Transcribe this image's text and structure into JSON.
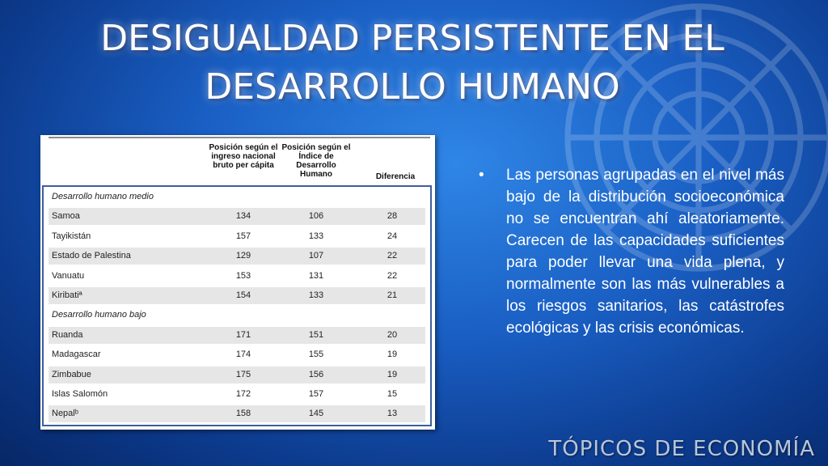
{
  "slide": {
    "title_line1": "DESIGUALDAD PERSISTENTE EN EL",
    "title_line2": "DESARROLLO HUMANO",
    "footer": "TÓPICOS DE ECONOMÍA"
  },
  "table": {
    "headers": [
      "Posición según el ingreso nacional bruto per cápita",
      "Posición según el Índice de Desarrollo Humano",
      "Diferencia"
    ],
    "rows": [
      {
        "label": "Desarrollo humano medio",
        "section": true,
        "v1": "",
        "v2": "",
        "v3": ""
      },
      {
        "label": "Samoa",
        "section": false,
        "v1": "134",
        "v2": "106",
        "v3": "28"
      },
      {
        "label": "Tayikistán",
        "section": false,
        "v1": "157",
        "v2": "133",
        "v3": "24"
      },
      {
        "label": "Estado de Palestina",
        "section": false,
        "v1": "129",
        "v2": "107",
        "v3": "22"
      },
      {
        "label": "Vanuatu",
        "section": false,
        "v1": "153",
        "v2": "131",
        "v3": "22"
      },
      {
        "label": "Kiribatiª",
        "section": false,
        "v1": "154",
        "v2": "133",
        "v3": "21"
      },
      {
        "label": "Desarrollo humano bajo",
        "section": true,
        "v1": "",
        "v2": "",
        "v3": ""
      },
      {
        "label": "Ruanda",
        "section": false,
        "v1": "171",
        "v2": "151",
        "v3": "20"
      },
      {
        "label": "Madagascar",
        "section": false,
        "v1": "174",
        "v2": "155",
        "v3": "19"
      },
      {
        "label": "Zimbabue",
        "section": false,
        "v1": "175",
        "v2": "156",
        "v3": "19"
      },
      {
        "label": "Islas Salomón",
        "section": false,
        "v1": "172",
        "v2": "157",
        "v3": "15"
      },
      {
        "label": "Nepalᵇ",
        "section": false,
        "v1": "158",
        "v2": "145",
        "v3": "13"
      }
    ]
  },
  "bullets": [
    "Las personas agrupadas en el nivel más bajo de la distribución socioeconómica no se encuentran ahí aleatoriamente. Carecen de las capacidades suficientes para poder llevar una vida plena, y normalmente son las más vulnerables a los riesgos sanitarios, las catástrofes ecológicas y las crisis económicas."
  ]
}
